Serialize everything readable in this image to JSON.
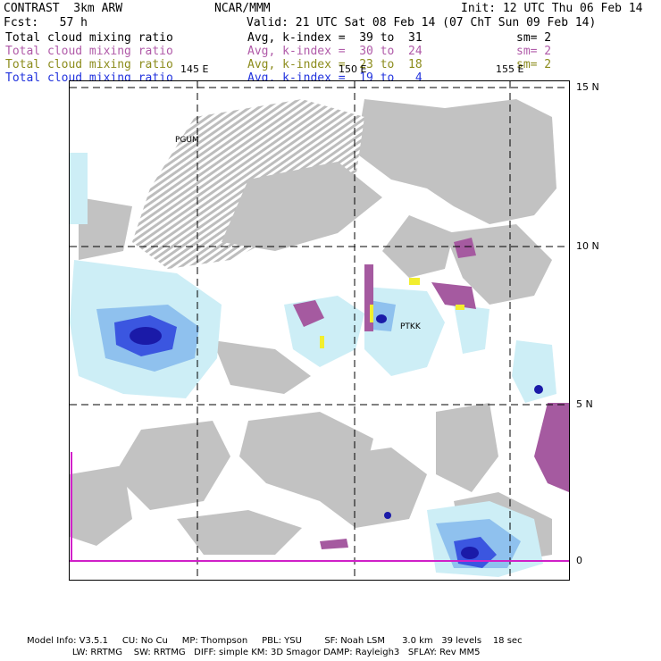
{
  "header": {
    "model": "CONTRAST  3km ARW",
    "org": "NCAR/MMM",
    "init": "Init: 12 UTC Thu 06 Feb 14",
    "fcst": "Fcst:   57 h",
    "valid": "Valid: 21 UTC Sat 08 Feb 14 (07 ChT Sun 09 Feb 14)"
  },
  "fields": [
    {
      "label": "Total cloud mixing ratio",
      "stat": "Avg, k-index =  39 to  31",
      "sm": "sm= 2",
      "color": "#000000"
    },
    {
      "label": "Total cloud mixing ratio",
      "stat": "Avg, k-index =  30 to  24",
      "sm": "sm= 2",
      "color": "#b05aa8"
    },
    {
      "label": "Total cloud mixing ratio",
      "stat": "Avg, k-index =  23 to  18",
      "sm": "sm= 2",
      "color": "#8c8c1c"
    },
    {
      "label": "Total cloud mixing ratio",
      "stat": "Avg, k-index =  19 to   4",
      "sm": "",
      "color": "#2233dd"
    }
  ],
  "map": {
    "lon_labels": [
      "145 E",
      "150 E",
      "155 E"
    ],
    "lat_labels": [
      "15 N",
      "10 N",
      "5 N",
      "0"
    ],
    "stations": [
      "PGUM",
      "PTKK"
    ]
  },
  "footer": {
    "line1": "Model Info: V3.5.1     CU: No Cu     MP: Thompson     PBL: YSU        SF: Noah LSM      3.0 km   39 levels    18 sec",
    "line2": "                LW: RRTMG    SW: RRTMG   DIFF: simple KM: 3D Smagor DAMP: Rayleigh3   SFLAY: Rev MM5"
  }
}
